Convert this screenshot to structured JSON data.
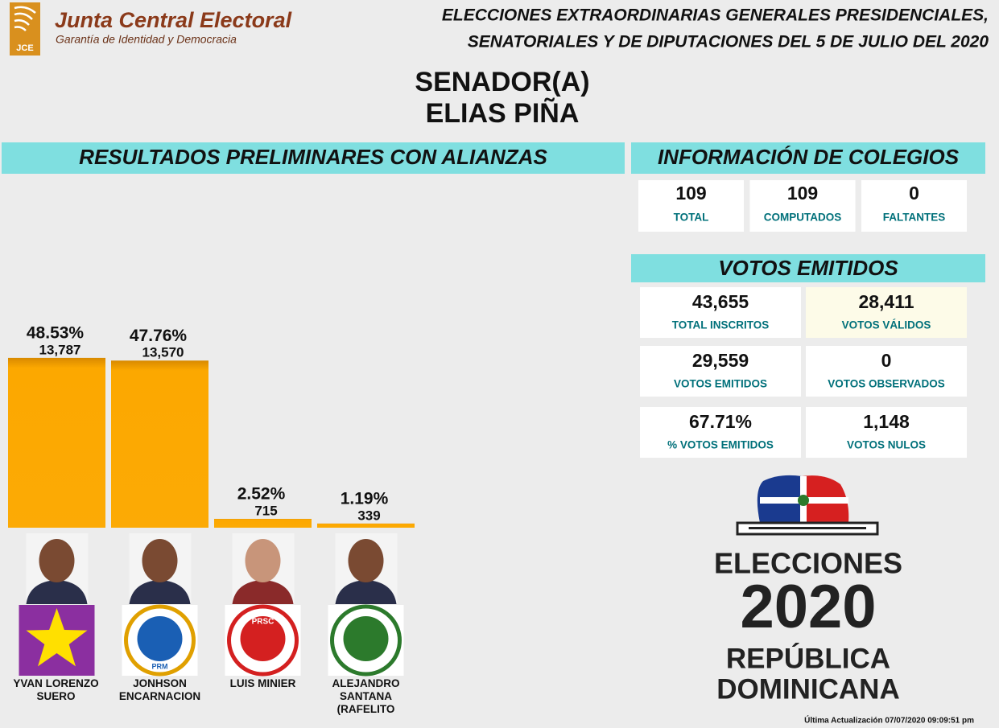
{
  "header": {
    "logo_text": "JCE",
    "org_name": "Junta Central Electoral",
    "org_tagline": "Garantía de Identidad y Democracia",
    "title_lines": [
      "ELECCIONES EXTRAORDINARIAS GENERALES PRESIDENCIALES,",
      "SENATORIALES Y DE DIPUTACIONES DEL 5 DE JULIO DEL 2020"
    ]
  },
  "position": "SENADOR(A)",
  "province": "ELIAS PIÑA",
  "chart_data": {
    "type": "bar",
    "title": "RESULTADOS PRELIMINARES CON ALIANZAS",
    "categories": [
      "YVAN LORENZO SUERO",
      "JONHSON ENCARNACION",
      "LUIS MINIER",
      "ALEJANDRO SANTANA (RAFELITO"
    ],
    "values": [
      48.53,
      47.76,
      2.52,
      1.19
    ],
    "value_labels": [
      "48.53%",
      "47.76%",
      "2.52%",
      "1.19%"
    ],
    "votes": [
      13787,
      13570,
      715,
      339
    ],
    "vote_labels": [
      "13,787",
      "13,570",
      "715",
      "339"
    ],
    "color": "#fca800"
  },
  "logos": {
    "prm": "PRM",
    "prsc": "PRSC"
  },
  "colegios": {
    "title": "INFORMACIÓN DE COLEGIOS",
    "items": [
      {
        "value": 109,
        "label": "TOTAL"
      },
      {
        "value": 109,
        "label": "COMPUTADOS"
      },
      {
        "value": 0,
        "label": "FALTANTES"
      }
    ]
  },
  "votos": {
    "title": "VOTOS EMITIDOS",
    "items": [
      {
        "value": "43,655",
        "label": "TOTAL INSCRITOS"
      },
      {
        "value": "28,411",
        "label": "VOTOS VÁLIDOS"
      },
      {
        "value": "29,559",
        "label": "VOTOS EMITIDOS"
      },
      {
        "value": 0,
        "label": "VOTOS OBSERVADOS"
      },
      {
        "value": "67.71%",
        "label": "% VOTOS EMITIDOS"
      },
      {
        "value": "1,148",
        "label": "VOTOS NULOS"
      }
    ]
  },
  "branding": {
    "lines": [
      "ELECCIONES",
      "2020",
      "REPÚBLICA",
      "DOMINICANA"
    ]
  },
  "footer": "Última Actualización 07/07/2020 09:09:51 pm"
}
